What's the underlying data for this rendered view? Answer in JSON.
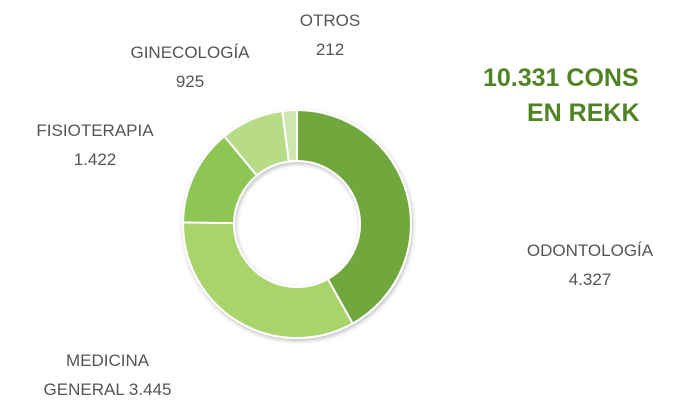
{
  "chart_data": {
    "type": "donut",
    "title_lines": [
      "10.331 CONS",
      "EN REKK"
    ],
    "categories": [
      "ODONTOLOGÍA",
      "MEDICINA GENERAL",
      "FISIOTERAPIA",
      "GINECOLOGÍA",
      "OTROS"
    ],
    "values": [
      4327,
      3445,
      1422,
      925,
      212
    ],
    "value_labels": [
      "4.327",
      "3.445",
      "1.422",
      "925",
      "212"
    ],
    "colors": [
      "#6fa83e",
      "#a9d46c",
      "#8ec653",
      "#b7db86",
      "#cfe6ae"
    ]
  }
}
